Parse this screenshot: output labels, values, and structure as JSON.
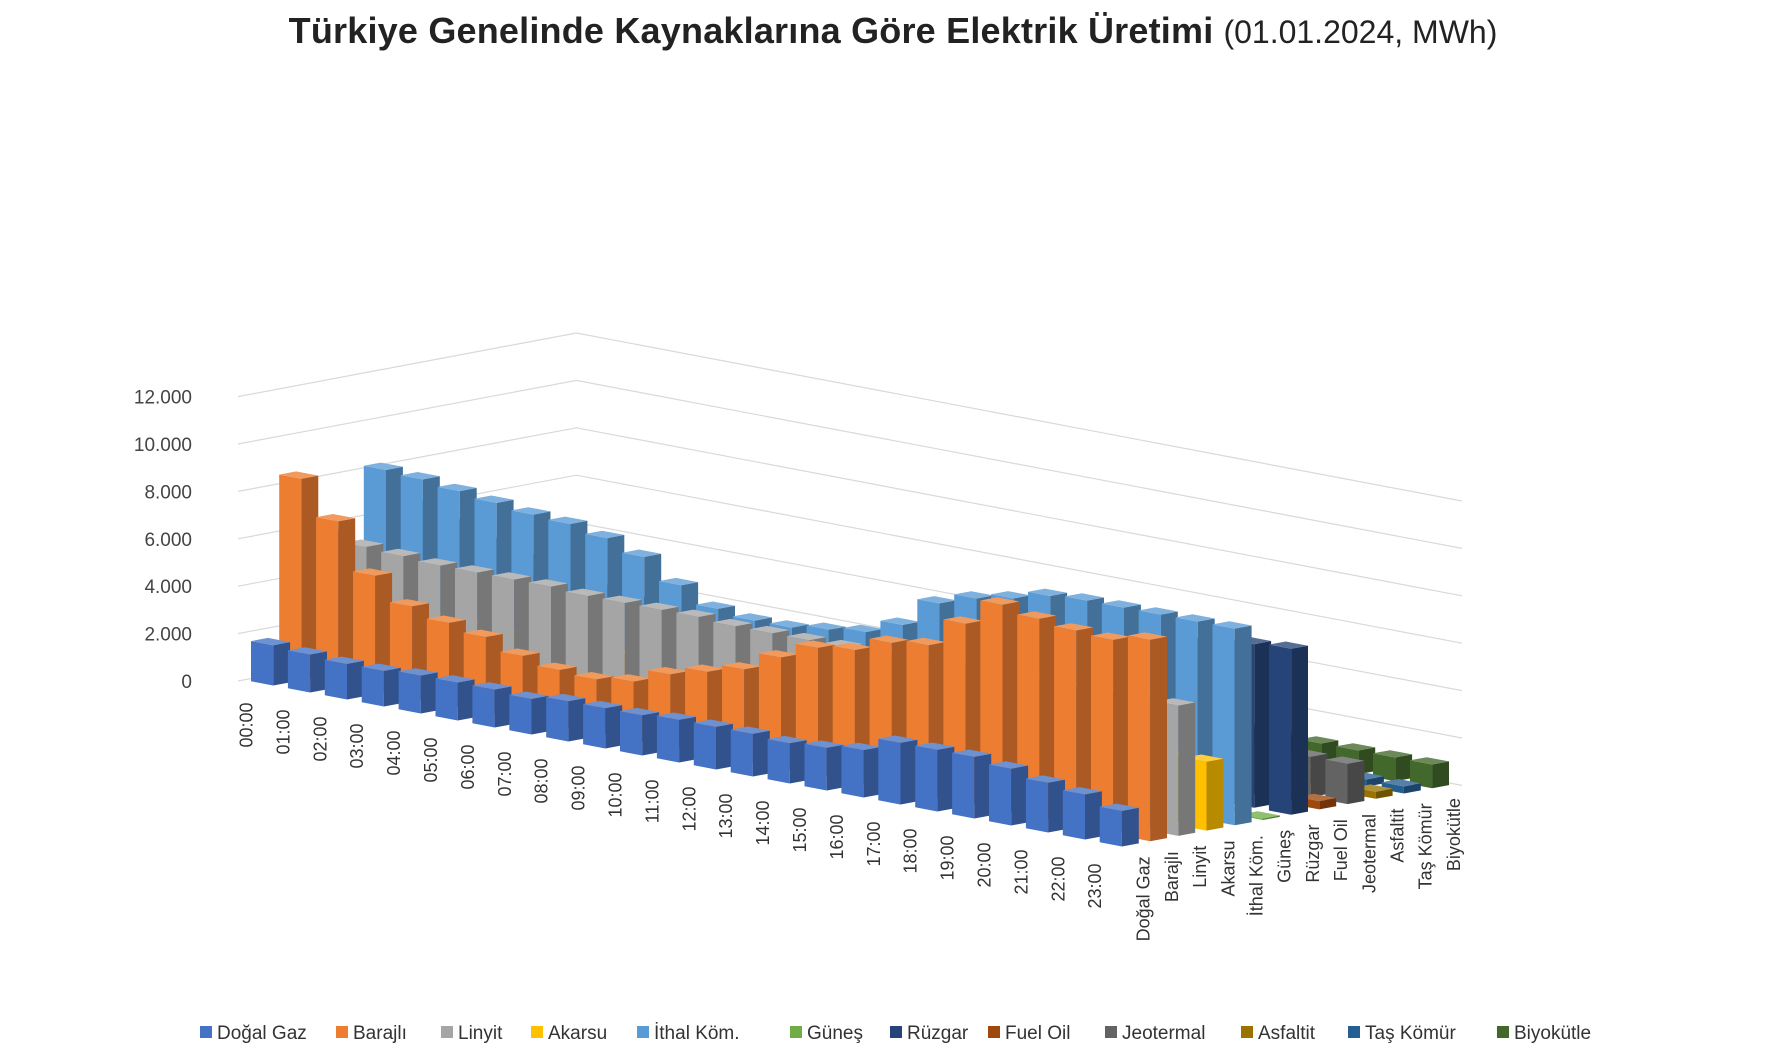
{
  "chart_data": {
    "type": "bar",
    "subtype": "3d-column",
    "title": "Türkiye Genelinde Kaynaklarına Göre Elektrik Üretimi",
    "subtitle": "(01.01.2024, MWh)",
    "ylim": [
      0,
      12000
    ],
    "yticks": [
      "0",
      "2.000",
      "4.000",
      "6.000",
      "8.000",
      "10.000",
      "12.000"
    ],
    "legend_position": "bottom",
    "categories": [
      "00:00",
      "01:00",
      "02:00",
      "03:00",
      "04:00",
      "05:00",
      "06:00",
      "07:00",
      "08:00",
      "09:00",
      "10:00",
      "11:00",
      "12:00",
      "13:00",
      "14:00",
      "15:00",
      "16:00",
      "17:00",
      "18:00",
      "19:00",
      "20:00",
      "21:00",
      "22:00",
      "23:00"
    ],
    "series": [
      {
        "name": "Doğal Gaz",
        "color": "#4472C4",
        "values": [
          1700,
          1600,
          1500,
          1500,
          1600,
          1600,
          1600,
          1500,
          1700,
          1700,
          1700,
          1800,
          1800,
          1800,
          1700,
          1800,
          2000,
          2600,
          2600,
          2600,
          2400,
          2100,
          1900,
          1500
        ]
      },
      {
        "name": "Barajlı",
        "color": "#ED7D31",
        "values": [
          8500,
          7000,
          5000,
          4000,
          3600,
          3300,
          2800,
          2500,
          2400,
          2600,
          3200,
          3600,
          4000,
          4800,
          5500,
          5700,
          6300,
          6500,
          7700,
          8800,
          8500,
          8300,
          8200,
          8500
        ]
      },
      {
        "name": "Linyit",
        "color": "#A5A5A5",
        "values": [
          6000,
          5700,
          5600,
          5500,
          5500,
          5500,
          5500,
          5400,
          5400,
          5400,
          5400,
          5300,
          5300,
          5300,
          5300,
          5300,
          5400,
          5400,
          5400,
          5400,
          5400,
          5500,
          5500,
          5500
        ]
      },
      {
        "name": "Akarsu",
        "color": "#FFC000",
        "values": [
          2900,
          2850,
          2800,
          2750,
          2700,
          2700,
          2700,
          2700,
          2700,
          2700,
          2800,
          2800,
          2800,
          2800,
          2800,
          2800,
          2800,
          2800,
          2800,
          2850,
          2850,
          2850,
          2850,
          2900
        ]
      },
      {
        "name": "İthal Köm.",
        "color": "#5B9BD5",
        "values": [
          8200,
          8100,
          7900,
          7700,
          7500,
          7400,
          7100,
          6600,
          5700,
          5000,
          4800,
          4800,
          5000,
          5200,
          5800,
          7000,
          7500,
          7800,
          8200,
          8300,
          8300,
          8300,
          8300,
          8300
        ]
      },
      {
        "name": "Güneş",
        "color": "#70AD47",
        "values": [
          0,
          0,
          0,
          0,
          0,
          0,
          0,
          50,
          800,
          2400,
          3800,
          4400,
          4500,
          4100,
          3000,
          1600,
          400,
          0,
          0,
          0,
          0,
          0,
          0,
          0
        ]
      },
      {
        "name": "Rüzgar",
        "color": "#264478",
        "values": [
          6300,
          5800,
          5300,
          4900,
          4500,
          4200,
          4000,
          3700,
          3500,
          3400,
          3400,
          3500,
          3600,
          3700,
          3900,
          4200,
          4600,
          5100,
          5700,
          6200,
          6500,
          6700,
          6900,
          7000
        ]
      },
      {
        "name": "Fuel Oil",
        "color": "#9E480E",
        "values": [
          400,
          380,
          370,
          360,
          350,
          350,
          350,
          350,
          350,
          350,
          350,
          350,
          350,
          350,
          350,
          350,
          350,
          350,
          350,
          350,
          350,
          350,
          350,
          350
        ]
      },
      {
        "name": "Jeotermal",
        "color": "#636363",
        "values": [
          1700,
          1700,
          1700,
          1700,
          1700,
          1700,
          1700,
          1700,
          1700,
          1700,
          1700,
          1700,
          1700,
          1700,
          1700,
          1700,
          1700,
          1700,
          1700,
          1700,
          1700,
          1700,
          1700,
          1700
        ]
      },
      {
        "name": "Asfaltit",
        "color": "#997300",
        "values": [
          300,
          300,
          300,
          300,
          300,
          300,
          300,
          300,
          300,
          300,
          300,
          300,
          300,
          300,
          300,
          300,
          300,
          300,
          300,
          300,
          300,
          300,
          300,
          300
        ]
      },
      {
        "name": "Taş Kömür",
        "color": "#255E91",
        "values": [
          300,
          300,
          300,
          300,
          300,
          300,
          300,
          300,
          300,
          300,
          300,
          300,
          300,
          300,
          300,
          300,
          300,
          300,
          300,
          300,
          300,
          300,
          300,
          300
        ]
      },
      {
        "name": "Biyokütle",
        "color": "#43682B",
        "values": [
          1000,
          1000,
          1000,
          1000,
          1000,
          1000,
          1000,
          1000,
          1000,
          1000,
          1000,
          1000,
          1000,
          1000,
          1000,
          1000,
          1000,
          1000,
          1000,
          1000,
          1000,
          1000,
          1000,
          1000
        ]
      }
    ]
  }
}
